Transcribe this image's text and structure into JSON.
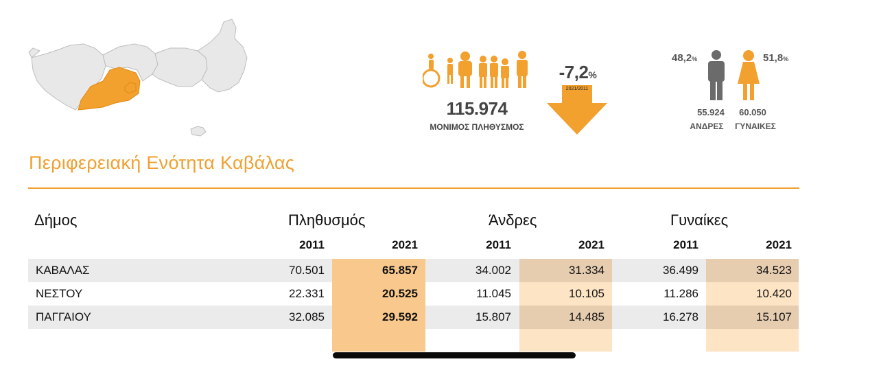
{
  "summary": {
    "population": "115.974",
    "population_label": "ΜΟΝΙΜΟΣ ΠΛΗΘΥΣΜΟΣ",
    "change_value": "-7,2",
    "change_unit": "%",
    "change_period": "2021/2011",
    "men_pct": "48,2",
    "women_pct": "51,8",
    "pct_unit": "%",
    "men_count": "55.924",
    "women_count": "60.050",
    "men_label": "ΑΝΔΡΕΣ",
    "women_label": "ΓΥΝΑΙΚΕΣ"
  },
  "icons": {
    "people": "population-group-icon",
    "arrow": "down-arrow-icon",
    "man": "man-icon",
    "woman": "woman-icon",
    "map": "region-map-icon"
  },
  "colors": {
    "accent": "#f0a030",
    "map_highlight": "#f2a02e",
    "map_region": "#e8e8e8",
    "col_pop_2021": "#f8c88c",
    "col_gender_2021_dark": "#e6cdb0",
    "col_gender_2021_light": "#fde4c4",
    "row_stripe": "#ebebeb"
  },
  "region": {
    "title": "Περιφερειακή Ενότητα Καβάλας"
  },
  "table": {
    "municipality_header": "Δήμος",
    "population_header": "Πληθυσμός",
    "men_header": "Άνδρες",
    "women_header": "Γυναίκες",
    "year_a": "2011",
    "year_b": "2021",
    "rows": [
      {
        "name": "ΚΑΒΑΛΑΣ",
        "pop2011": "70.501",
        "pop2021": "65.857",
        "men2011": "34.002",
        "men2021": "31.334",
        "women2011": "36.499",
        "women2021": "34.523"
      },
      {
        "name": "ΝΕΣΤΟΥ",
        "pop2011": "22.331",
        "pop2021": "20.525",
        "men2011": "11.045",
        "men2021": "10.105",
        "women2011": "11.286",
        "women2021": "10.420"
      },
      {
        "name": "ΠΑΓΓΑΙΟΥ",
        "pop2011": "32.085",
        "pop2021": "29.592",
        "men2011": "15.807",
        "men2021": "14.485",
        "women2011": "16.278",
        "women2021": "15.107"
      }
    ]
  }
}
